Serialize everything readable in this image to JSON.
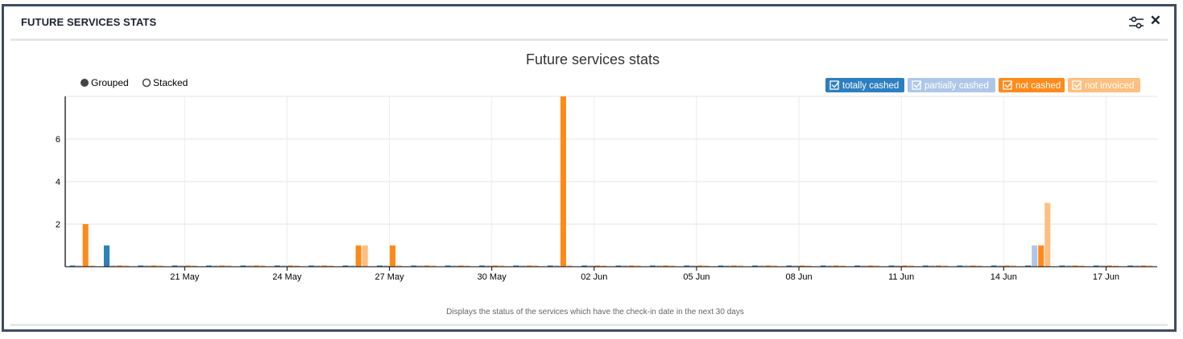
{
  "panel": {
    "title": "FUTURE SERVICES STATS",
    "settings_icon": "sliders-icon",
    "close_icon": "close-icon",
    "close_glyph": "✕"
  },
  "controls": {
    "grouped_label": "Grouped",
    "stacked_label": "Stacked",
    "selected": "Grouped"
  },
  "footer_note": "Displays the status of the services which have the check-in date in the next 30 days",
  "colors": {
    "totally_cashed": "#2d7fbf",
    "partially_cashed": "#aec7e8",
    "not_cashed": "#ff8a1a",
    "not_invoiced": "#ffbf80"
  },
  "chart_data": {
    "type": "bar",
    "mode": "grouped",
    "title": "Future services stats",
    "xlabel": "",
    "ylabel": "",
    "ylim": [
      0,
      8
    ],
    "yticks": [
      2,
      4,
      6
    ],
    "grid": true,
    "legend_position": "top-right",
    "categories": [
      "18 May",
      "19 May",
      "20 May",
      "21 May",
      "22 May",
      "23 May",
      "24 May",
      "25 May",
      "26 May",
      "27 May",
      "28 May",
      "29 May",
      "30 May",
      "31 May",
      "01 Jun",
      "02 Jun",
      "03 Jun",
      "04 Jun",
      "05 Jun",
      "06 Jun",
      "07 Jun",
      "08 Jun",
      "09 Jun",
      "10 Jun",
      "11 Jun",
      "12 Jun",
      "13 Jun",
      "14 Jun",
      "15 Jun",
      "16 Jun",
      "17 Jun",
      "18 Jun"
    ],
    "xtick_labels": [
      "21 May",
      "24 May",
      "27 May",
      "30 May",
      "02 Jun",
      "05 Jun",
      "08 Jun",
      "11 Jun",
      "14 Jun",
      "17 Jun"
    ],
    "series": [
      {
        "name": "totally cashed",
        "color": "#2d7fbf",
        "values": [
          0,
          1,
          0,
          0,
          0,
          0,
          0,
          0,
          0,
          0,
          0,
          0,
          0,
          0,
          0,
          0,
          0,
          0,
          0,
          0,
          0,
          0,
          0,
          0,
          0,
          0,
          0,
          0,
          0,
          0,
          0,
          0
        ]
      },
      {
        "name": "partially cashed",
        "color": "#aec7e8",
        "values": [
          0,
          0,
          0,
          0,
          0,
          0,
          0,
          0,
          0,
          0,
          0,
          0,
          0,
          0,
          0,
          0,
          0,
          0,
          0,
          0,
          0,
          0,
          0,
          0,
          0,
          0,
          0,
          0,
          1,
          0,
          0,
          0
        ]
      },
      {
        "name": "not cashed",
        "color": "#ff8a1a",
        "values": [
          2,
          0,
          0,
          0,
          0,
          0,
          0,
          0,
          1,
          1,
          0,
          0,
          0,
          0,
          8,
          0,
          0,
          0,
          0,
          0,
          0,
          0,
          0,
          0,
          0,
          0,
          0,
          0,
          1,
          0,
          0,
          0
        ]
      },
      {
        "name": "not invoiced",
        "color": "#ffbf80",
        "values": [
          0,
          0,
          0,
          0,
          0,
          0,
          0,
          0,
          1,
          0,
          0,
          0,
          0,
          0,
          0,
          0,
          0,
          0,
          0,
          0,
          0,
          0,
          0,
          0,
          0,
          0,
          0,
          0,
          3,
          0,
          0,
          0
        ]
      }
    ]
  }
}
